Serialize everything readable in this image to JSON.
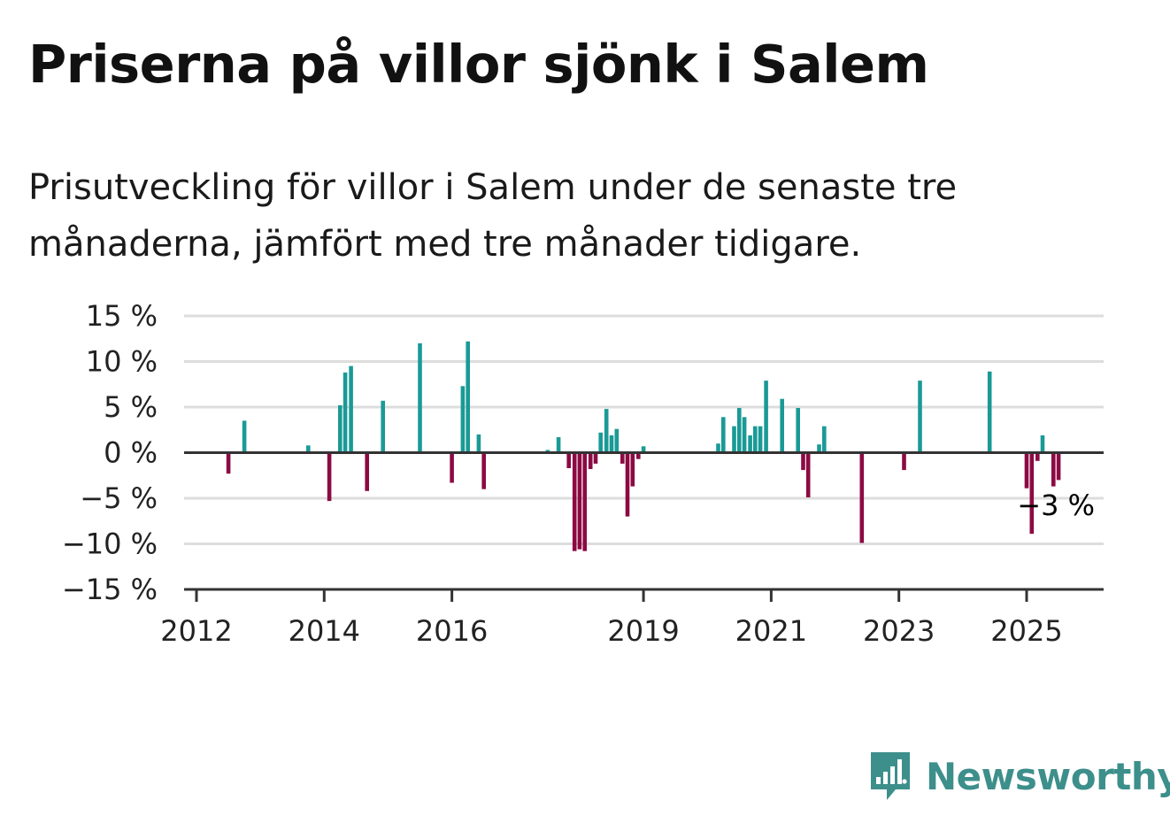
{
  "title": "Priserna på villor sjönk i Salem",
  "subtitle": "Prisutveckling för villor i Salem under de senaste tre månaderna, jämfört med tre månader tidigare.",
  "brand": "Newsworthy",
  "colors": {
    "positive": "#1a9a96",
    "negative": "#8c0a43",
    "grid": "#dddddd",
    "axis": "#333333",
    "brand": "#3d8f8b"
  },
  "chart_data": {
    "type": "bar",
    "title": "Priserna på villor sjönk i Salem",
    "xlabel": "",
    "ylabel": "",
    "ylim": [
      -15,
      15
    ],
    "xlim": [
      2012.0,
      2025.9
    ],
    "yticks": [
      15,
      10,
      5,
      0,
      -5,
      -10,
      -15
    ],
    "ytick_labels": [
      "15 %",
      "10 %",
      "5 %",
      "0 %",
      "−5 %",
      "−10 %",
      "−15 %"
    ],
    "xticks": [
      2012,
      2014,
      2016,
      2019,
      2021,
      2023,
      2025
    ],
    "xtick_labels": [
      "2012",
      "2014",
      "2016",
      "2019",
      "2021",
      "2023",
      "2025"
    ],
    "grid": true,
    "last_value_label": "−3 %",
    "x": [
      2012.5,
      2012.75,
      2013.75,
      2014.08,
      2014.25,
      2014.33,
      2014.42,
      2014.67,
      2014.92,
      2015.5,
      2016.0,
      2016.17,
      2016.25,
      2016.42,
      2016.5,
      2017.5,
      2017.67,
      2017.75,
      2017.83,
      2017.92,
      2018.0,
      2018.08,
      2018.17,
      2018.25,
      2018.33,
      2018.42,
      2018.5,
      2018.58,
      2018.67,
      2018.75,
      2018.83,
      2018.92,
      2019.0,
      2020.17,
      2020.25,
      2020.42,
      2020.5,
      2020.58,
      2020.67,
      2020.75,
      2020.83,
      2020.92,
      2021.17,
      2021.42,
      2021.5,
      2021.58,
      2021.75,
      2021.83,
      2022.42,
      2023.08,
      2023.33,
      2024.42,
      2025.0,
      2025.08,
      2025.17,
      2025.25,
      2025.42,
      2025.5
    ],
    "values": [
      -2.3,
      3.5,
      0.8,
      -5.3,
      5.2,
      8.8,
      9.5,
      -4.2,
      5.7,
      12.0,
      -3.3,
      7.3,
      12.2,
      2.0,
      -4.0,
      0.3,
      1.7,
      0.1,
      -1.7,
      -10.8,
      -10.6,
      -10.8,
      -1.8,
      -1.2,
      2.2,
      4.8,
      1.9,
      2.6,
      -1.2,
      -7.0,
      -3.7,
      -0.7,
      0.7,
      1.0,
      3.9,
      2.9,
      4.9,
      3.9,
      1.9,
      2.9,
      2.9,
      7.9,
      5.9,
      4.9,
      -1.9,
      -4.9,
      0.9,
      2.9,
      -9.9,
      -1.9,
      7.9,
      8.9,
      -3.9,
      -8.9,
      -0.9,
      1.9,
      -3.7,
      -3.0
    ]
  }
}
